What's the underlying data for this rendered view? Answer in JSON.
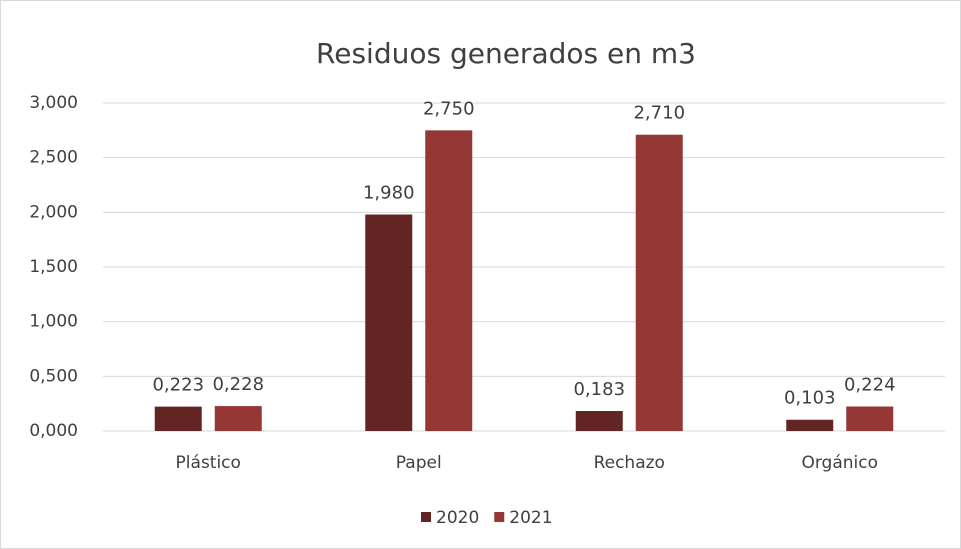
{
  "chart_data": {
    "type": "bar",
    "title": "Residuos generados en m3",
    "categories": [
      "Plástico",
      "Papel",
      "Rechazo",
      "Orgánico"
    ],
    "series": [
      {
        "name": "2020",
        "color": "#632523",
        "values": [
          0.223,
          1.98,
          0.183,
          0.103
        ],
        "value_labels": [
          "0,223",
          "1,980",
          "0,183",
          "0,103"
        ]
      },
      {
        "name": "2021",
        "color": "#953735",
        "values": [
          0.228,
          2.75,
          2.71,
          0.224
        ],
        "value_labels": [
          "0,228",
          "2,750",
          "2,710",
          "0,224"
        ]
      }
    ],
    "ylim": [
      0,
      3
    ],
    "yticks": [
      {
        "value": 0,
        "label": "0,000"
      },
      {
        "value": 0.5,
        "label": "0,500"
      },
      {
        "value": 1,
        "label": "1,000"
      },
      {
        "value": 1.5,
        "label": "1,500"
      },
      {
        "value": 2,
        "label": "2,000"
      },
      {
        "value": 2.5,
        "label": "2,500"
      },
      {
        "value": 3,
        "label": "3,000"
      }
    ],
    "grid": true,
    "legend": "bottom"
  }
}
